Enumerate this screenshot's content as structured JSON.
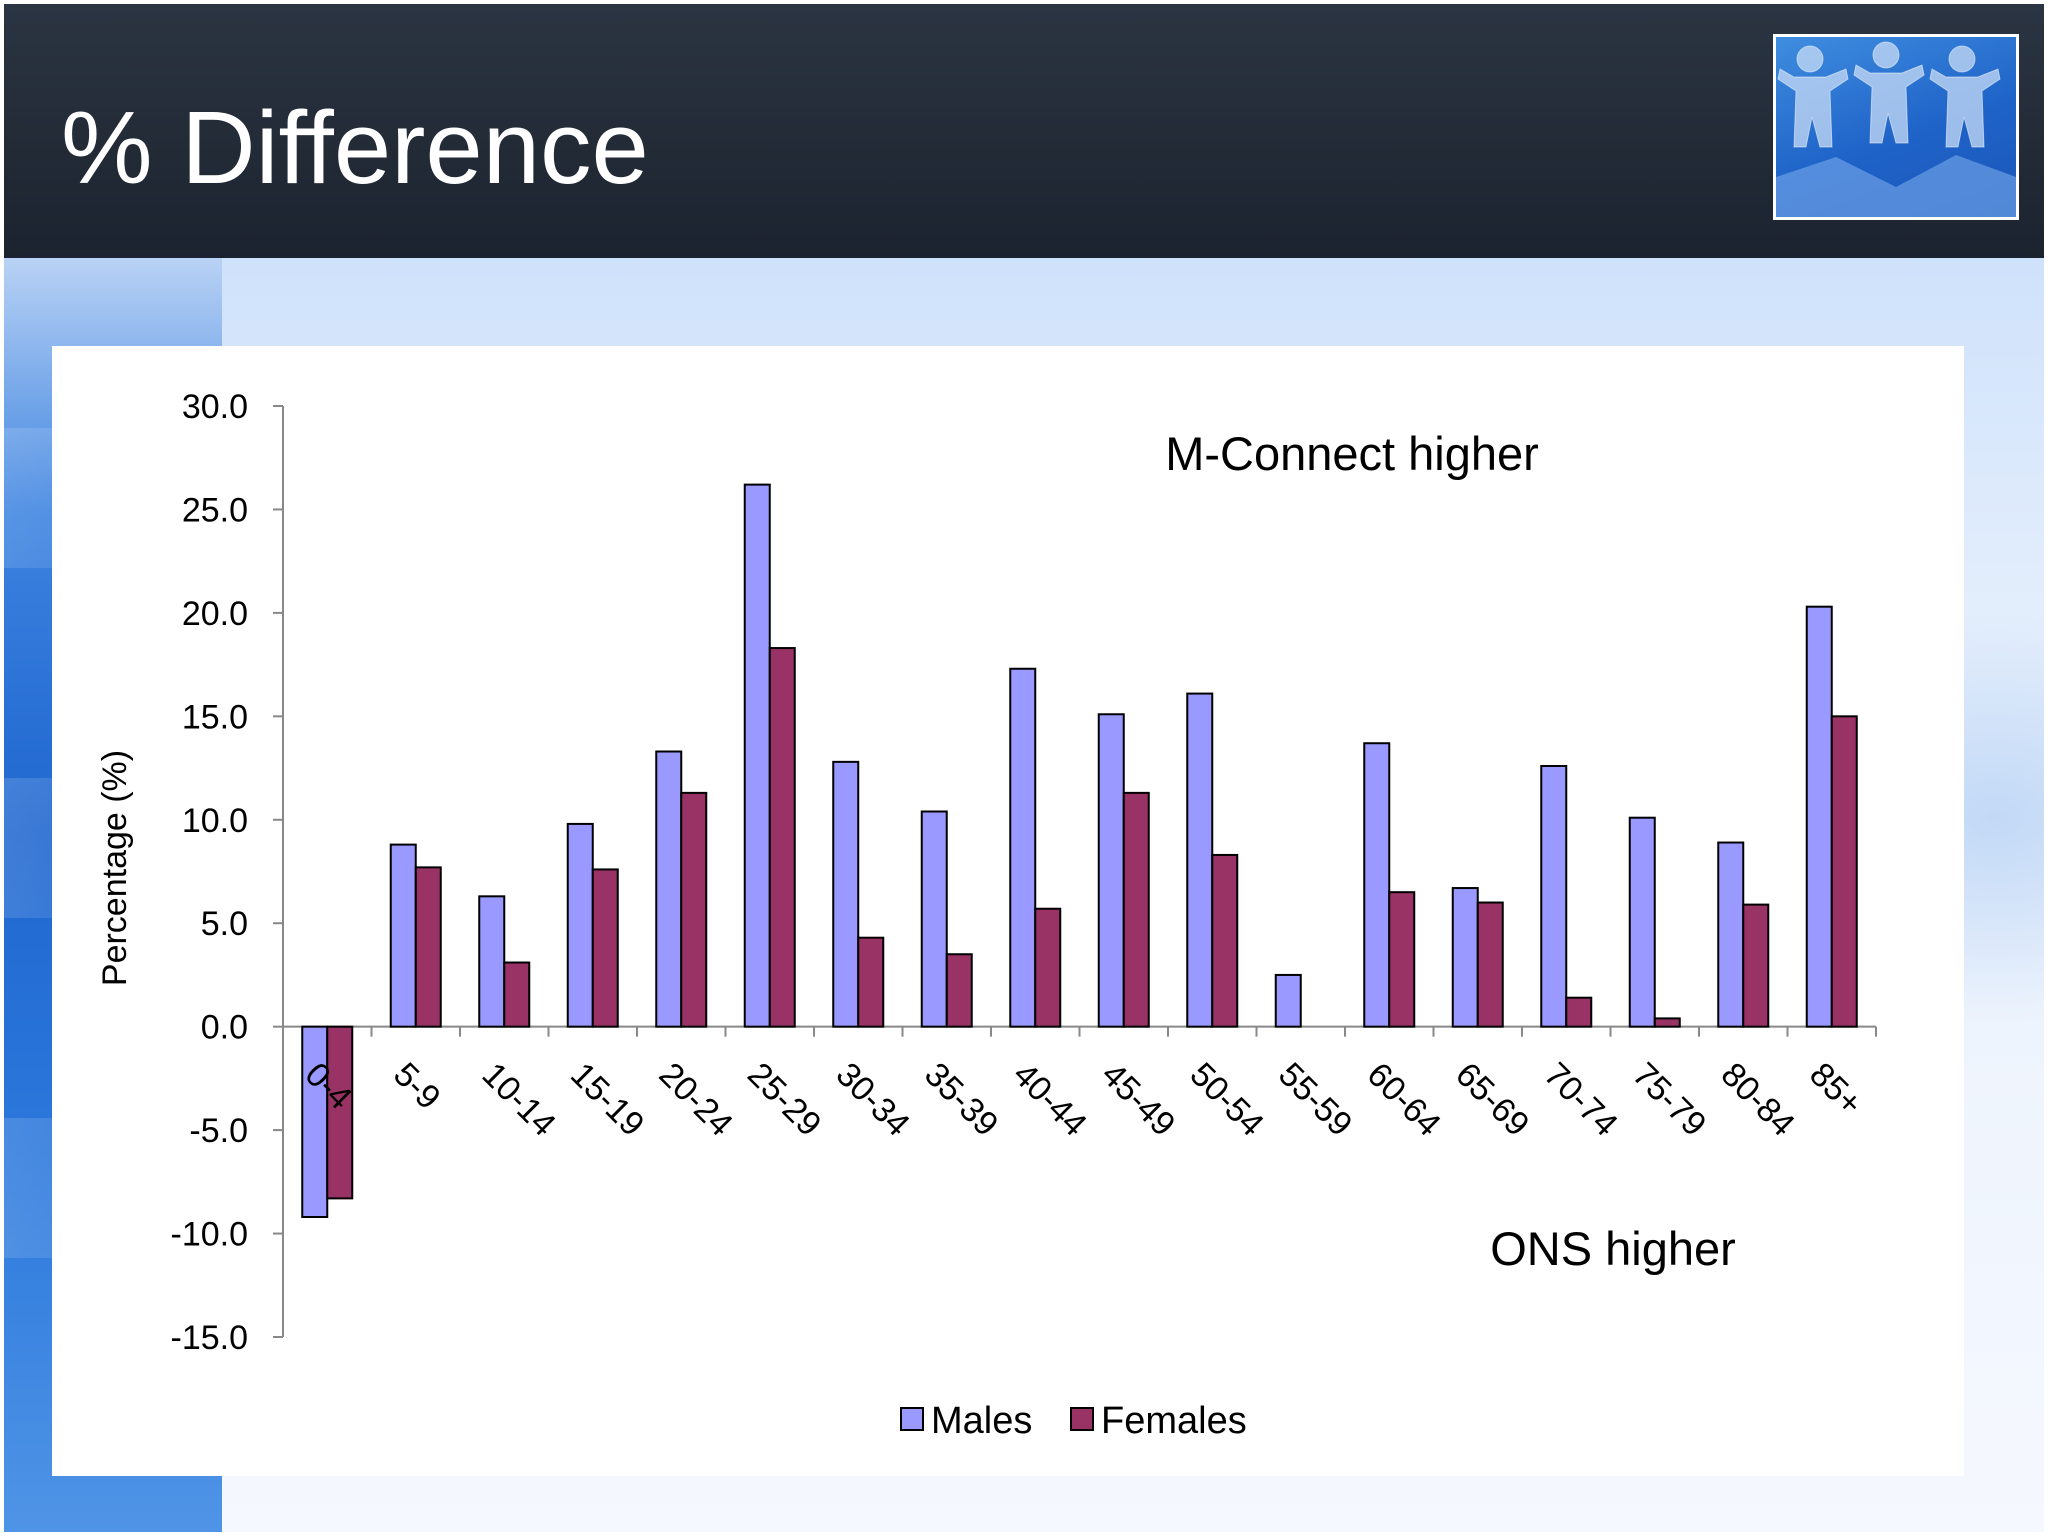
{
  "slide": {
    "title": "% Difference",
    "logo_name": "paper-people-chain-logo"
  },
  "chart_data": {
    "type": "bar",
    "ylabel": "Percentage (%)",
    "xlabel": "",
    "ylim": [
      -15.0,
      30.0
    ],
    "ytick_step": 5.0,
    "ytick_labels": [
      "30.0",
      "25.0",
      "20.0",
      "15.0",
      "10.0",
      "5.0",
      "0.0",
      "-5.0",
      "-10.0",
      "-15.0"
    ],
    "categories": [
      "0-4",
      "5-9",
      "10-14",
      "15-19",
      "20-24",
      "25-29",
      "30-34",
      "35-39",
      "40-44",
      "45-49",
      "50-54",
      "55-59",
      "60-64",
      "65-69",
      "70-74",
      "75-79",
      "80-84",
      "85+"
    ],
    "series": [
      {
        "name": "Males",
        "color": "#9999ff",
        "values": [
          -9.2,
          8.8,
          6.3,
          9.8,
          13.3,
          26.2,
          12.8,
          10.4,
          17.3,
          15.1,
          16.1,
          2.5,
          13.7,
          6.7,
          12.6,
          10.1,
          8.9,
          20.3
        ]
      },
      {
        "name": "Females",
        "color": "#993366",
        "values": [
          -8.3,
          7.7,
          3.1,
          7.6,
          11.3,
          18.3,
          4.3,
          3.5,
          5.7,
          11.3,
          8.3,
          0.0,
          6.5,
          6.0,
          1.4,
          0.4,
          5.9,
          15.0
        ]
      }
    ],
    "annotations": {
      "top": "M-Connect higher",
      "bottom": "ONS higher"
    },
    "legend_position": "bottom-center",
    "grid": false
  }
}
